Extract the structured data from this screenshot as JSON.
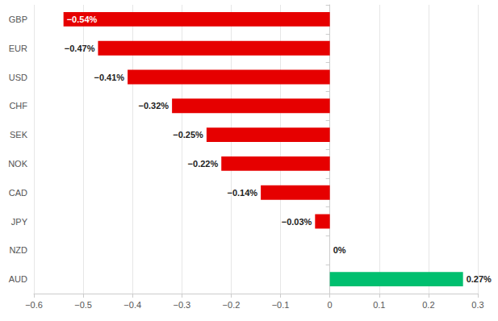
{
  "chart_data": {
    "type": "bar",
    "orientation": "horizontal",
    "categories": [
      "GBP",
      "EUR",
      "USD",
      "CHF",
      "SEK",
      "NOK",
      "CAD",
      "JPY",
      "NZD",
      "AUD"
    ],
    "values": [
      -0.54,
      -0.47,
      -0.41,
      -0.32,
      -0.25,
      -0.22,
      -0.14,
      -0.03,
      0,
      0.27
    ],
    "value_labels": [
      "−0.54%",
      "−0.47%",
      "−0.41%",
      "−0.32%",
      "−0.25%",
      "−0.22%",
      "−0.14%",
      "−0.03%",
      "0%",
      "0.27%"
    ],
    "colors": [
      "#e60000",
      "#e60000",
      "#e60000",
      "#e60000",
      "#e60000",
      "#e60000",
      "#e60000",
      "#e60000",
      "#e60000",
      "#00bf6f"
    ],
    "xlim": [
      -0.6,
      0.3
    ],
    "xticks": [
      {
        "value": -0.6,
        "label": "−0.6"
      },
      {
        "value": -0.5,
        "label": "−0.5"
      },
      {
        "value": -0.4,
        "label": "−0.4"
      },
      {
        "value": -0.3,
        "label": "−0.3"
      },
      {
        "value": -0.2,
        "label": "−0.2"
      },
      {
        "value": -0.1,
        "label": "−0.1"
      },
      0,
      0.1,
      0.2,
      0.3
    ],
    "grid": true,
    "data_labels": true
  }
}
